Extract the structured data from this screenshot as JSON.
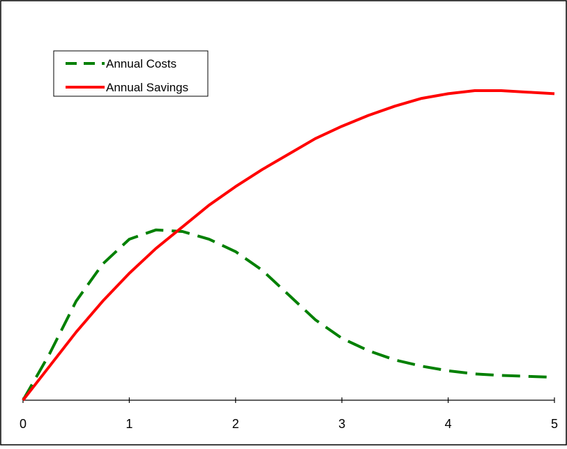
{
  "chart_data": {
    "type": "line",
    "title": "",
    "xlabel": "",
    "ylabel": "",
    "xlim": [
      0,
      5
    ],
    "ylim": [
      0,
      1
    ],
    "x_ticks": [
      0,
      1,
      2,
      3,
      4,
      5
    ],
    "x_tick_labels": [
      "0",
      "1",
      "2",
      "3",
      "4",
      "5"
    ],
    "y_ticks_visible": false,
    "grid": false,
    "legend_position": "top-left",
    "series": [
      {
        "name": "Annual Costs",
        "color": "#008000",
        "line_style": "dashed",
        "x": [
          0,
          0.25,
          0.5,
          0.75,
          1.0,
          1.25,
          1.5,
          1.75,
          2.0,
          2.25,
          2.5,
          2.75,
          3.0,
          3.25,
          3.5,
          3.75,
          4.0,
          4.25,
          4.5,
          4.75,
          5.0
        ],
        "y": [
          0,
          0.15,
          0.32,
          0.44,
          0.52,
          0.55,
          0.545,
          0.52,
          0.48,
          0.42,
          0.34,
          0.26,
          0.2,
          0.16,
          0.13,
          0.11,
          0.095,
          0.085,
          0.08,
          0.077,
          0.074
        ]
      },
      {
        "name": "Annual Savings",
        "color": "#ff0000",
        "line_style": "solid",
        "x": [
          0,
          0.25,
          0.5,
          0.75,
          1.0,
          1.25,
          1.5,
          1.75,
          2.0,
          2.25,
          2.5,
          2.75,
          3.0,
          3.25,
          3.5,
          3.75,
          4.0,
          4.25,
          4.5,
          4.75,
          5.0
        ],
        "y": [
          0,
          0.11,
          0.22,
          0.32,
          0.41,
          0.49,
          0.56,
          0.63,
          0.69,
          0.745,
          0.795,
          0.845,
          0.885,
          0.92,
          0.95,
          0.975,
          0.99,
          1.0,
          1.0,
          0.995,
          0.99
        ]
      }
    ]
  }
}
